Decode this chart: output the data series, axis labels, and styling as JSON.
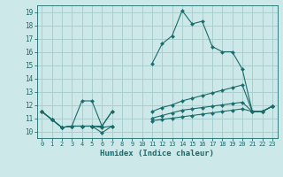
{
  "xlabel": "Humidex (Indice chaleur)",
  "background_color": "#cce8e8",
  "grid_color": "#aacfcf",
  "line_color": "#1a6b6b",
  "xlim": [
    -0.5,
    23.5
  ],
  "ylim": [
    9.5,
    19.5
  ],
  "xticks": [
    0,
    1,
    2,
    3,
    4,
    5,
    6,
    7,
    8,
    9,
    10,
    11,
    12,
    13,
    14,
    15,
    16,
    17,
    18,
    19,
    20,
    21,
    22,
    23
  ],
  "yticks": [
    10,
    11,
    12,
    13,
    14,
    15,
    16,
    17,
    18,
    19
  ],
  "series": [
    {
      "x": [
        0,
        1,
        2,
        3,
        4,
        5,
        6,
        7,
        8,
        9,
        10,
        11,
        12,
        13,
        14,
        15,
        16,
        17,
        18,
        19,
        20,
        21,
        22,
        23
      ],
      "y": [
        11.5,
        10.9,
        10.3,
        10.4,
        12.3,
        12.3,
        10.4,
        11.5,
        null,
        null,
        null,
        15.1,
        16.6,
        17.2,
        19.1,
        18.1,
        18.3,
        16.4,
        16.0,
        16.0,
        14.7,
        11.5,
        11.5,
        11.9
      ]
    },
    {
      "x": [
        0,
        1,
        2,
        3,
        4,
        5,
        6,
        7,
        8,
        9,
        10,
        11,
        12,
        13,
        14,
        15,
        16,
        17,
        18,
        19,
        20,
        21,
        22,
        23
      ],
      "y": [
        11.5,
        10.9,
        10.3,
        10.4,
        10.4,
        10.4,
        10.4,
        11.5,
        null,
        null,
        null,
        11.5,
        11.8,
        12.0,
        12.3,
        12.5,
        12.7,
        12.9,
        13.1,
        13.3,
        13.5,
        11.5,
        11.5,
        11.9
      ]
    },
    {
      "x": [
        0,
        1,
        2,
        3,
        4,
        5,
        6,
        7,
        8,
        9,
        10,
        11,
        12,
        13,
        14,
        15,
        16,
        17,
        18,
        19,
        20,
        21,
        22,
        23
      ],
      "y": [
        11.5,
        10.9,
        10.3,
        10.4,
        10.4,
        10.4,
        9.9,
        10.4,
        null,
        null,
        null,
        11.0,
        11.2,
        11.4,
        11.6,
        11.7,
        11.8,
        11.9,
        12.0,
        12.1,
        12.2,
        11.5,
        11.5,
        11.9
      ]
    },
    {
      "x": [
        0,
        1,
        2,
        3,
        4,
        5,
        6,
        7,
        8,
        9,
        10,
        11,
        12,
        13,
        14,
        15,
        16,
        17,
        18,
        19,
        20,
        21,
        22,
        23
      ],
      "y": [
        11.5,
        10.9,
        10.3,
        10.4,
        10.4,
        10.4,
        10.3,
        10.4,
        null,
        null,
        null,
        10.8,
        10.9,
        11.0,
        11.1,
        11.2,
        11.3,
        11.4,
        11.5,
        11.6,
        11.7,
        11.5,
        11.5,
        11.9
      ]
    }
  ]
}
